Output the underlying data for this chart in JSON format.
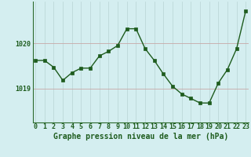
{
  "x": [
    0,
    1,
    2,
    3,
    4,
    5,
    6,
    7,
    8,
    9,
    10,
    11,
    12,
    13,
    14,
    15,
    16,
    17,
    18,
    19,
    20,
    21,
    22,
    23
  ],
  "y": [
    1019.62,
    1019.62,
    1019.47,
    1019.18,
    1019.35,
    1019.45,
    1019.45,
    1019.72,
    1019.82,
    1019.95,
    1020.32,
    1020.32,
    1019.88,
    1019.62,
    1019.32,
    1019.05,
    1018.88,
    1018.78,
    1018.68,
    1018.68,
    1019.12,
    1019.42,
    1019.88,
    1020.72
  ],
  "line_color": "#1e5c1e",
  "marker_color": "#1e5c1e",
  "bg_color": "#d4eef0",
  "grid_color_v": "#b8d4d4",
  "grid_color_h": "#c8a8a8",
  "title": "Graphe pression niveau de la mer (hPa)",
  "title_color": "#1e5c1e",
  "ytick_labels": [
    "1019",
    "1020"
  ],
  "ytick_values": [
    1019.0,
    1020.0
  ],
  "ylim": [
    1018.25,
    1020.92
  ],
  "xlim": [
    0,
    23
  ],
  "title_fontsize": 7.0,
  "tick_fontsize": 6.0,
  "border_color": "#2d6b2d"
}
